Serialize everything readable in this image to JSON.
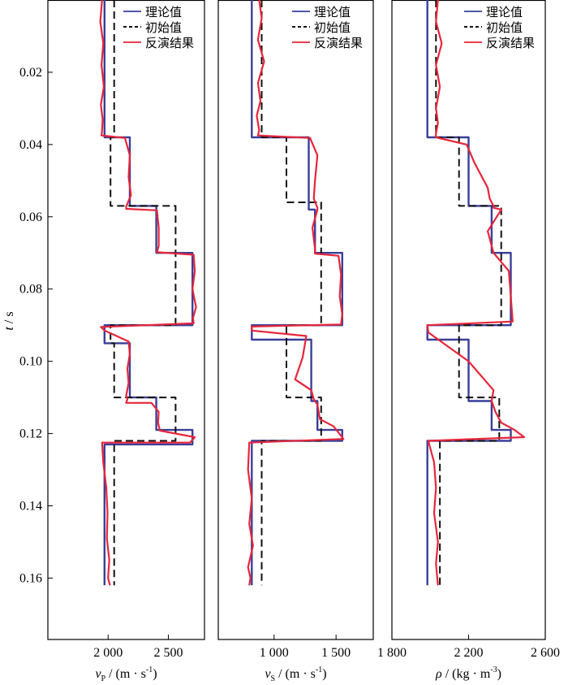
{
  "colors": {
    "theory": "#3a3f99",
    "initial": "#111111",
    "inversion": "#e8253a"
  },
  "chart_data": [
    {
      "type": "line",
      "xlabel": {
        "sym": "v",
        "sub": "P",
        "unit": " / (m · s",
        "sup": "-1",
        "close": ")"
      },
      "ylabel": {
        "sym": "t",
        "unit": " / s"
      },
      "xlim": [
        1500,
        2800
      ],
      "xticks": [
        2000,
        2500
      ],
      "xticklabels": [
        "2 000",
        "2 500"
      ],
      "ylim": [
        0.177,
        0.0
      ],
      "yticks": [
        0.02,
        0.04,
        0.06,
        0.08,
        0.1,
        0.12,
        0.14,
        0.16
      ],
      "yticklabels": [
        "0.02",
        "0.04",
        "0.06",
        "0.08",
        "0.10",
        "0.12",
        "0.14",
        "0.16"
      ],
      "legend": {
        "position": "top-right",
        "entries": [
          "理论值",
          "初始值",
          "反演结果"
        ]
      },
      "series": [
        {
          "name": "理论值",
          "style": "solid",
          "x": [
            1970,
            1970,
            2180,
            2180,
            2400,
            2400,
            2700,
            2700,
            1970,
            1970,
            2180,
            2180,
            2400,
            2400,
            2700,
            2700,
            1970,
            1970
          ],
          "t": [
            0.0,
            0.038,
            0.038,
            0.057,
            0.057,
            0.07,
            0.07,
            0.09,
            0.09,
            0.095,
            0.095,
            0.11,
            0.11,
            0.119,
            0.119,
            0.123,
            0.123,
            0.162
          ]
        },
        {
          "name": "初始值",
          "style": "dashed",
          "x": [
            2050,
            2050,
            2020,
            2020,
            2560,
            2560,
            2020,
            2020,
            2050,
            2050,
            2560,
            2560,
            2050,
            2050
          ],
          "t": [
            0.0,
            0.038,
            0.038,
            0.057,
            0.057,
            0.09,
            0.09,
            0.095,
            0.095,
            0.11,
            0.11,
            0.122,
            0.122,
            0.162
          ]
        },
        {
          "name": "反演结果",
          "style": "solid",
          "x": [
            1950,
            1935,
            1960,
            1945,
            1965,
            1940,
            1955,
            1950,
            1945,
            2140,
            2180,
            2170,
            2190,
            2150,
            2150,
            2405,
            2420,
            2420,
            2405,
            2710,
            2720,
            2700,
            2730,
            2705,
            2710,
            1940,
            1970,
            2170,
            2180,
            2160,
            2170,
            2150,
            2160,
            2150,
            2360,
            2420,
            2415,
            2430,
            2720,
            2680,
            1950,
            1960,
            1985,
            1995,
            1990,
            2010,
            2000,
            2015
          ],
          "t": [
            0.0,
            0.006,
            0.012,
            0.018,
            0.024,
            0.029,
            0.033,
            0.036,
            0.0375,
            0.0382,
            0.043,
            0.049,
            0.054,
            0.0572,
            0.0578,
            0.0582,
            0.063,
            0.068,
            0.0698,
            0.0705,
            0.075,
            0.08,
            0.085,
            0.088,
            0.0895,
            0.0905,
            0.0915,
            0.0945,
            0.098,
            0.102,
            0.106,
            0.1095,
            0.1105,
            0.1115,
            0.1115,
            0.114,
            0.117,
            0.1192,
            0.121,
            0.1225,
            0.1225,
            0.128,
            0.135,
            0.142,
            0.149,
            0.155,
            0.16,
            0.162
          ]
        }
      ]
    },
    {
      "type": "line",
      "xlabel": {
        "sym": "v",
        "sub": "S",
        "unit": " / (m · s",
        "sup": "-1",
        "close": ")"
      },
      "ylim": [
        0.177,
        0.0
      ],
      "xlim": [
        550,
        1800
      ],
      "xticks": [
        1000,
        1500
      ],
      "xticklabels": [
        "1 000",
        "1 500"
      ],
      "legend": {
        "position": "top-right",
        "entries": [
          "理论值",
          "初始值",
          "反演结果"
        ]
      },
      "series": [
        {
          "name": "理论值",
          "style": "solid",
          "x": [
            820,
            820,
            1280,
            1280,
            1330,
            1330,
            1550,
            1550,
            820,
            820,
            1300,
            1300,
            1350,
            1350,
            1550,
            1550,
            820,
            820
          ],
          "t": [
            0.0,
            0.038,
            0.038,
            0.058,
            0.058,
            0.07,
            0.07,
            0.09,
            0.09,
            0.094,
            0.094,
            0.111,
            0.111,
            0.119,
            0.119,
            0.122,
            0.122,
            0.162
          ]
        },
        {
          "name": "初始值",
          "style": "dashed",
          "x": [
            900,
            900,
            1100,
            1100,
            1380,
            1380,
            1100,
            1100,
            1380,
            1380,
            900,
            900
          ],
          "t": [
            0.0,
            0.038,
            0.038,
            0.056,
            0.056,
            0.09,
            0.09,
            0.11,
            0.11,
            0.122,
            0.122,
            0.162
          ]
        },
        {
          "name": "反演结果",
          "style": "solid",
          "x": [
            880,
            900,
            870,
            920,
            870,
            890,
            860,
            880,
            870,
            1290,
            1350,
            1330,
            1320,
            1350,
            1350,
            1310,
            1330,
            1330,
            1520,
            1540,
            1530,
            1550,
            1540,
            820,
            820,
            1260,
            1230,
            1170,
            1300,
            1320,
            1350,
            1370,
            1480,
            1560,
            800,
            790,
            820,
            800,
            830,
            790,
            810,
            800
          ],
          "t": [
            0.0,
            0.005,
            0.011,
            0.017,
            0.023,
            0.028,
            0.032,
            0.036,
            0.0375,
            0.0382,
            0.043,
            0.05,
            0.055,
            0.0575,
            0.058,
            0.063,
            0.069,
            0.0702,
            0.0708,
            0.076,
            0.082,
            0.087,
            0.0898,
            0.0904,
            0.0915,
            0.093,
            0.099,
            0.105,
            0.108,
            0.1105,
            0.112,
            0.116,
            0.118,
            0.1215,
            0.1225,
            0.13,
            0.138,
            0.145,
            0.151,
            0.157,
            0.16,
            0.162
          ]
        }
      ]
    },
    {
      "type": "line",
      "xlabel": {
        "sym": "ρ",
        "sub": "",
        "unit": " / (kg · m",
        "sup": "-3",
        "close": ")"
      },
      "ylim": [
        0.177,
        0.0
      ],
      "xlim": [
        1800,
        2600
      ],
      "xticks": [
        1800,
        2200,
        2600
      ],
      "xticklabels": [
        "1 800",
        "2 200",
        "2 600"
      ],
      "legend": {
        "position": "top-right",
        "entries": [
          "理论值",
          "初始值",
          "反演结果"
        ]
      },
      "series": [
        {
          "name": "理论值",
          "style": "solid",
          "x": [
            1985,
            1985,
            2200,
            2200,
            2320,
            2320,
            2420,
            2420,
            1985,
            1985,
            2200,
            2200,
            2320,
            2320,
            2420,
            2420,
            1985,
            1985
          ],
          "t": [
            0.0,
            0.038,
            0.038,
            0.057,
            0.057,
            0.07,
            0.07,
            0.09,
            0.09,
            0.094,
            0.094,
            0.111,
            0.111,
            0.119,
            0.119,
            0.122,
            0.122,
            0.162
          ]
        },
        {
          "name": "初始值",
          "style": "dashed",
          "x": [
            2030,
            2030,
            2150,
            2150,
            2370,
            2370,
            2150,
            2150,
            2360,
            2360,
            2050,
            2050
          ],
          "t": [
            0.0,
            0.038,
            0.038,
            0.057,
            0.057,
            0.09,
            0.09,
            0.11,
            0.11,
            0.122,
            0.122,
            0.162
          ]
        },
        {
          "name": "反演结果",
          "style": "solid",
          "x": [
            2040,
            2030,
            2060,
            2030,
            2050,
            2030,
            2040,
            2030,
            2030,
            2190,
            2230,
            2300,
            2310,
            2330,
            2330,
            2370,
            2300,
            2330,
            2410,
            2420,
            2430,
            1985,
            1990,
            2200,
            2330,
            2320,
            2340,
            2370,
            2440,
            2490,
            1990,
            2020,
            2030,
            2020,
            2040,
            2030,
            2040
          ],
          "t": [
            0.0,
            0.006,
            0.012,
            0.018,
            0.024,
            0.03,
            0.034,
            0.037,
            0.038,
            0.04,
            0.045,
            0.052,
            0.055,
            0.057,
            0.0575,
            0.058,
            0.064,
            0.07,
            0.075,
            0.082,
            0.089,
            0.09,
            0.092,
            0.1,
            0.108,
            0.111,
            0.114,
            0.117,
            0.119,
            0.121,
            0.122,
            0.128,
            0.135,
            0.142,
            0.15,
            0.156,
            0.162
          ]
        }
      ]
    }
  ]
}
